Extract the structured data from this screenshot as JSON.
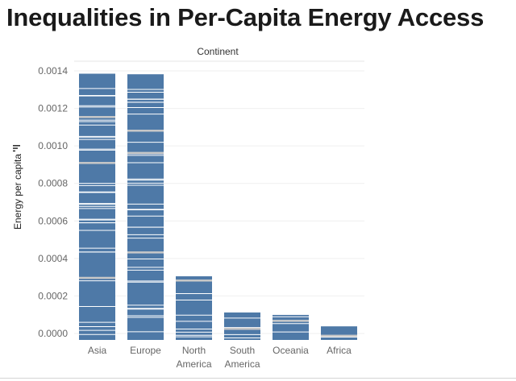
{
  "page": {
    "title": "Inequalities in Per-Capita Energy Access"
  },
  "colors": {
    "bar": "#4e79a7",
    "segment_line": "#ffffff",
    "gap": "#c8c8c8",
    "axis_text": "#666666",
    "label_text": "#222222"
  },
  "chart_data": {
    "type": "bar",
    "stacked": true,
    "column_header": "Continent",
    "ylabel": "Energy per capita",
    "ylim": [
      0,
      0.0015
    ],
    "yticks": [
      "0.0000",
      "0.0002",
      "0.0004",
      "0.0006",
      "0.0008",
      "0.0010",
      "0.0012",
      "0.0014"
    ],
    "grid": true,
    "categories": [
      "Asia",
      "Europe",
      "North America",
      "South America",
      "Oceania",
      "Africa"
    ],
    "category_labels": [
      [
        "Asia"
      ],
      [
        "Europe"
      ],
      [
        "North",
        "America"
      ],
      [
        "South",
        "America"
      ],
      [
        "Oceania"
      ],
      [
        "Africa"
      ]
    ],
    "values": [
      0.001385,
      0.001382,
      0.000305,
      0.000112,
      9.9e-05,
      3.8e-05
    ]
  }
}
